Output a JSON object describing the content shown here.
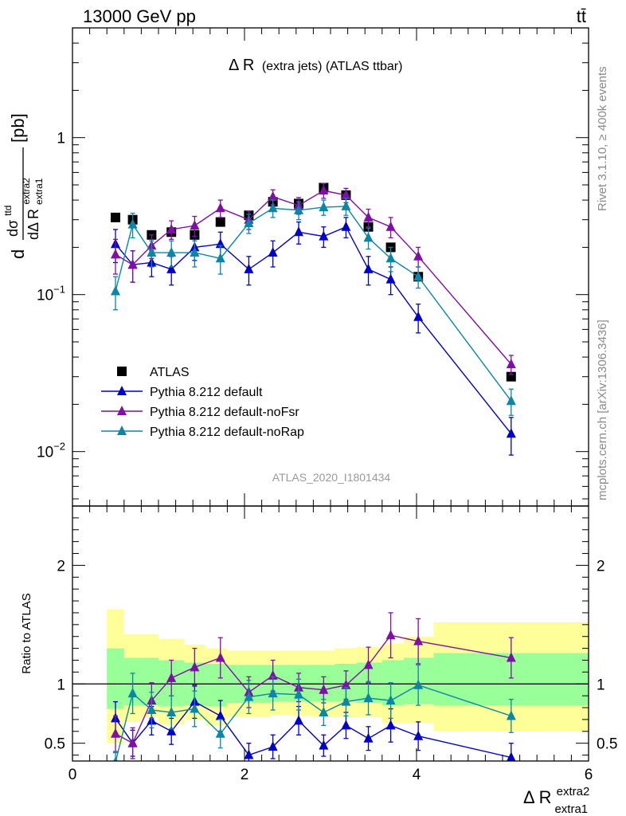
{
  "header": {
    "left": "13000 GeV pp",
    "right": "tt̄",
    "right_side_top": "Rivet 3.1.10, ≥ 400k events",
    "right_side_bottom": "mcplots.cern.ch [arXiv:1306.3436]"
  },
  "chart_data": [
    {
      "type": "scatter",
      "title": "Δ R (extra jets) (ATLAS ttbar)",
      "title_main": "Δ R",
      "title_sub": "(extra jets) (ATLAS ttbar)",
      "watermark": "ATLAS_2020_I1801434",
      "ylabel": {
        "d": "d",
        "sigma": "dσ",
        "sigma_sup": "ttd",
        "den": "dΔ R",
        "den_sub": "extra1",
        "den_sup": "extra2",
        "unit": "[pb]"
      },
      "yscale": "log",
      "xlim": [
        0,
        6
      ],
      "ylim": [
        0.0045,
        5.0
      ],
      "yticks": [
        {
          "value": 0.01,
          "base": "10",
          "exp": "−2"
        },
        {
          "value": 0.1,
          "base": "10",
          "exp": "−1"
        },
        {
          "value": 1,
          "base": "1",
          "exp": ""
        }
      ],
      "legend": {
        "placement": "lower-left",
        "entries": [
          {
            "label": "ATLAS",
            "color": "#000000",
            "marker": "square"
          },
          {
            "label": "Pythia 8.212 default",
            "color": "#0000cc",
            "marker": "triangle"
          },
          {
            "label": "Pythia 8.212 default-noFsr",
            "color": "#7f0fa6",
            "marker": "triangle"
          },
          {
            "label": "Pythia 8.212 default-noRap",
            "color": "#0a86a6",
            "marker": "triangle"
          }
        ]
      },
      "bins": [
        0.4,
        0.6,
        0.8,
        1.0,
        1.3,
        1.55,
        1.8,
        2.3,
        2.55,
        2.8,
        3.05,
        3.3,
        3.6,
        3.85,
        4.2,
        6.0
      ],
      "series": [
        {
          "name": "ATLAS",
          "color": "#000000",
          "x": [
            0.5,
            0.7,
            0.92,
            1.15,
            1.42,
            1.72,
            2.05,
            2.33,
            2.63,
            2.92,
            3.18,
            3.44,
            3.7,
            4.02,
            5.1
          ],
          "y": [
            0.31,
            0.3,
            0.24,
            0.25,
            0.24,
            0.29,
            0.32,
            0.39,
            0.38,
            0.48,
            0.43,
            0.27,
            0.2,
            0.13,
            0.03
          ]
        },
        {
          "name": "Pythia 8.212 default",
          "color": "#0000cc",
          "x": [
            0.5,
            0.7,
            0.92,
            1.15,
            1.42,
            1.72,
            2.05,
            2.33,
            2.63,
            2.92,
            3.18,
            3.44,
            3.7,
            4.02,
            5.1
          ],
          "y": [
            0.21,
            0.155,
            0.16,
            0.145,
            0.2,
            0.21,
            0.145,
            0.185,
            0.25,
            0.235,
            0.27,
            0.145,
            0.125,
            0.072,
            0.013
          ],
          "err": [
            0.05,
            0.035,
            0.03,
            0.03,
            0.035,
            0.04,
            0.03,
            0.035,
            0.04,
            0.035,
            0.04,
            0.03,
            0.025,
            0.015,
            0.0035
          ]
        },
        {
          "name": "Pythia 8.212 default-noFsr",
          "color": "#7f0fa6",
          "x": [
            0.5,
            0.7,
            0.92,
            1.15,
            1.42,
            1.72,
            2.05,
            2.33,
            2.63,
            2.92,
            3.18,
            3.44,
            3.7,
            4.02,
            5.1
          ],
          "y": [
            0.18,
            0.155,
            0.205,
            0.26,
            0.275,
            0.355,
            0.3,
            0.42,
            0.37,
            0.46,
            0.43,
            0.31,
            0.27,
            0.175,
            0.036
          ],
          "err": [
            0.045,
            0.035,
            0.035,
            0.035,
            0.04,
            0.045,
            0.04,
            0.045,
            0.045,
            0.05,
            0.045,
            0.04,
            0.04,
            0.025,
            0.005
          ]
        },
        {
          "name": "Pythia 8.212 default-noRap",
          "color": "#0a86a6",
          "x": [
            0.5,
            0.7,
            0.92,
            1.15,
            1.42,
            1.72,
            2.05,
            2.33,
            2.63,
            2.92,
            3.18,
            3.44,
            3.7,
            4.02,
            5.1
          ],
          "y": [
            0.105,
            0.28,
            0.185,
            0.185,
            0.185,
            0.17,
            0.285,
            0.355,
            0.345,
            0.36,
            0.365,
            0.23,
            0.17,
            0.13,
            0.021
          ],
          "err": [
            0.025,
            0.05,
            0.035,
            0.035,
            0.035,
            0.035,
            0.04,
            0.045,
            0.045,
            0.04,
            0.045,
            0.035,
            0.03,
            0.02,
            0.004
          ]
        }
      ]
    },
    {
      "type": "scatter",
      "ylabel": "Ratio to ATLAS",
      "xlabel_main": "Δ R",
      "xlabel_sup": "extra2",
      "xlabel_sub": "extra1",
      "xlim": [
        0,
        6
      ],
      "ylim": [
        0.35,
        2.5
      ],
      "xticks": [
        0,
        2,
        4,
        6
      ],
      "yticks": [
        0.5,
        1,
        2
      ],
      "band_outer": [
        [
          0.5,
          1.63
        ],
        [
          0.68,
          1.42
        ],
        [
          0.72,
          1.42
        ],
        [
          0.66,
          1.38
        ],
        [
          0.7,
          1.33
        ],
        [
          0.65,
          1.3
        ],
        [
          0.72,
          1.28
        ],
        [
          0.74,
          1.28
        ],
        [
          0.73,
          1.28
        ],
        [
          0.72,
          1.28
        ],
        [
          0.72,
          1.3
        ],
        [
          0.72,
          1.31
        ],
        [
          0.67,
          1.34
        ],
        [
          0.67,
          1.4
        ],
        [
          0.6,
          1.52
        ]
      ],
      "band_inner": [
        [
          0.79,
          1.3
        ],
        [
          0.82,
          1.22
        ],
        [
          0.82,
          1.22
        ],
        [
          0.81,
          1.2
        ],
        [
          0.82,
          1.18
        ],
        [
          0.81,
          1.17
        ],
        [
          0.84,
          1.16
        ],
        [
          0.85,
          1.16
        ],
        [
          0.85,
          1.16
        ],
        [
          0.85,
          1.16
        ],
        [
          0.85,
          1.17
        ],
        [
          0.84,
          1.18
        ],
        [
          0.82,
          1.2
        ],
        [
          0.83,
          1.22
        ],
        [
          0.82,
          1.26
        ]
      ],
      "series": [
        {
          "name": "Pythia 8.212 default",
          "color": "#0000cc",
          "x": [
            0.5,
            0.7,
            0.92,
            1.15,
            1.42,
            1.72,
            2.05,
            2.33,
            2.63,
            2.92,
            3.18,
            3.44,
            3.7,
            4.02,
            5.1
          ],
          "y": [
            0.71,
            0.5,
            0.69,
            0.6,
            0.85,
            0.73,
            0.4,
            0.47,
            0.69,
            0.48,
            0.65,
            0.54,
            0.65,
            0.56,
            0.38
          ],
          "err": [
            0.14,
            0.11,
            0.12,
            0.11,
            0.14,
            0.13,
            0.1,
            0.1,
            0.12,
            0.09,
            0.11,
            0.1,
            0.14,
            0.12,
            0.12
          ]
        },
        {
          "name": "Pythia 8.212 default-noFsr",
          "color": "#7f0fa6",
          "x": [
            0.5,
            0.7,
            0.92,
            1.15,
            1.42,
            1.72,
            2.05,
            2.33,
            2.63,
            2.92,
            3.18,
            3.44,
            3.7,
            4.02,
            5.1
          ],
          "y": [
            0.58,
            0.5,
            0.86,
            1.05,
            1.14,
            1.22,
            0.93,
            1.07,
            0.97,
            0.95,
            0.99,
            1.16,
            1.41,
            1.36,
            1.22
          ],
          "err": [
            0.15,
            0.13,
            0.15,
            0.15,
            0.16,
            0.17,
            0.13,
            0.13,
            0.12,
            0.11,
            0.12,
            0.15,
            0.19,
            0.19,
            0.17
          ]
        },
        {
          "name": "Pythia 8.212 default-noRap",
          "color": "#0a86a6",
          "x": [
            0.5,
            0.7,
            0.92,
            1.15,
            1.42,
            1.72,
            2.05,
            2.33,
            2.63,
            2.92,
            3.18,
            3.44,
            3.7,
            4.02,
            5.1
          ],
          "y": [
            0.34,
            0.92,
            0.78,
            0.76,
            0.79,
            0.58,
            0.89,
            0.92,
            0.91,
            0.76,
            0.85,
            0.88,
            0.86,
            0.99,
            0.73
          ],
          "err": [
            0.08,
            0.17,
            0.15,
            0.14,
            0.15,
            0.12,
            0.14,
            0.14,
            0.13,
            0.11,
            0.12,
            0.14,
            0.15,
            0.17,
            0.14
          ]
        }
      ]
    }
  ]
}
